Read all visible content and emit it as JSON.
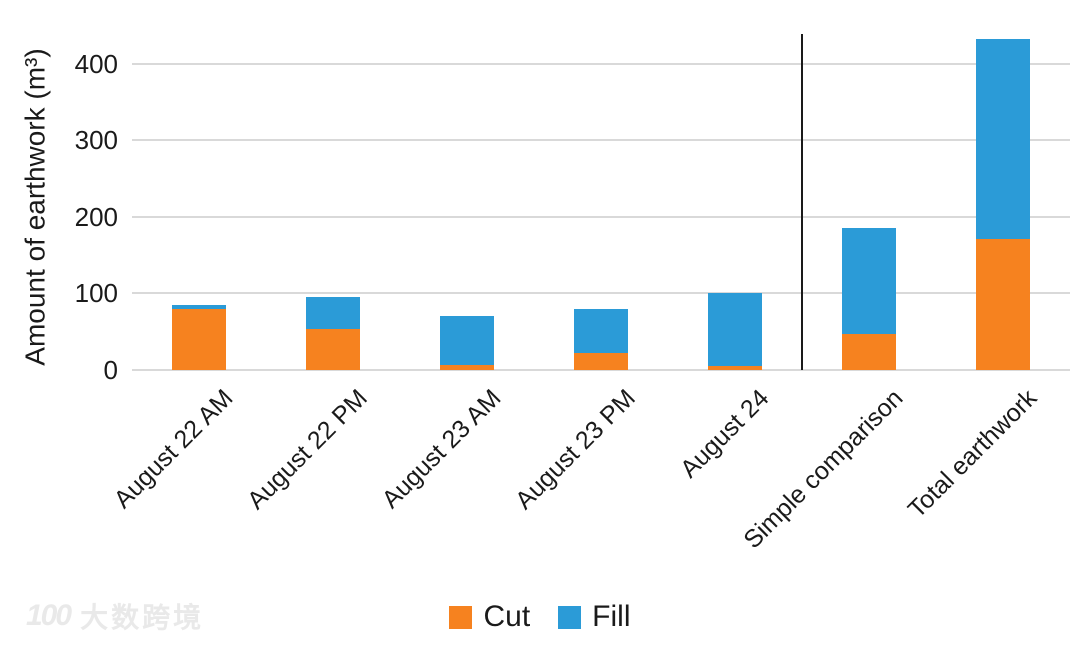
{
  "watermark": {
    "logo": "100",
    "text": "大数跨境"
  },
  "chart_data": {
    "type": "bar",
    "stacked": true,
    "title": "",
    "xlabel": "",
    "ylabel": "Amount of earthwork (m³)",
    "ylim": [
      0,
      440
    ],
    "yticks": [
      0,
      100,
      200,
      300,
      400
    ],
    "grid": true,
    "categories": [
      "August 22 AM",
      "August 22 PM",
      "August 23 AM",
      "August 23 PM",
      "August 24",
      "Simple comparison",
      "Total earthwork"
    ],
    "series": [
      {
        "name": "Cut",
        "color": "#f6821f",
        "values": [
          79,
          53,
          7,
          22,
          5,
          47,
          171
        ]
      },
      {
        "name": "Fill",
        "color": "#2b9bd7",
        "values": [
          6,
          42,
          63,
          58,
          95,
          138,
          261
        ]
      }
    ],
    "totals": [
      85,
      95,
      70,
      80,
      100,
      185,
      432
    ],
    "legend": {
      "position": "bottom",
      "entries": [
        "Cut",
        "Fill"
      ]
    },
    "divider_after_category_index": 4,
    "colors": {
      "gridline": "#d9d9d9",
      "divider": "#1a1a1a",
      "text": "#1a1a1a"
    }
  }
}
